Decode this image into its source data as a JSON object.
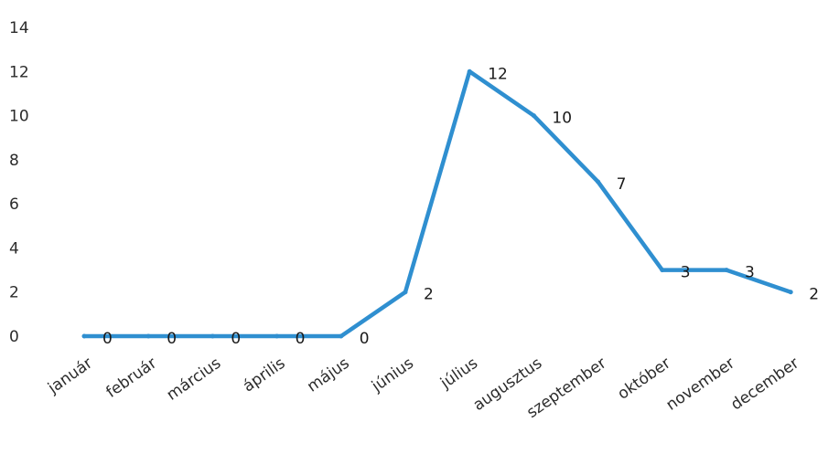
{
  "chart_data": {
    "type": "line",
    "categories": [
      "január",
      "február",
      "március",
      "április",
      "május",
      "június",
      "július",
      "augusztus",
      "szeptember",
      "október",
      "november",
      "december"
    ],
    "series": [
      {
        "values": [
          0,
          0,
          0,
          0,
          0,
          2,
          12,
          10,
          7,
          3,
          3,
          2
        ]
      }
    ],
    "data_labels": [
      "0",
      "0",
      "0",
      "0",
      "0",
      "2",
      "12",
      "10",
      "7",
      "3",
      "3",
      "2"
    ],
    "yticks": [
      "0",
      "2",
      "4",
      "6",
      "8",
      "10",
      "12",
      "14"
    ],
    "ylim": [
      0,
      14
    ],
    "grid": false,
    "line_color": "#2f8fd0"
  }
}
